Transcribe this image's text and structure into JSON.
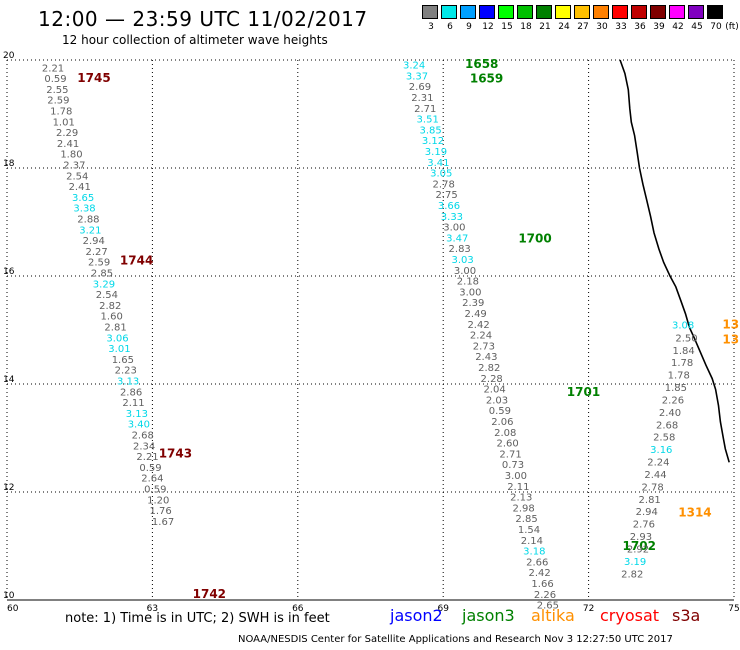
{
  "header": {
    "title": "12:00 — 23:59 UTC 11/02/2017",
    "subtitle": "12 hour collection of altimeter wave heights"
  },
  "legend": {
    "unit": "(ft)",
    "items": [
      {
        "label": "3",
        "color": "#808080"
      },
      {
        "label": "6",
        "color": "#00e8e8"
      },
      {
        "label": "9",
        "color": "#00a0ff"
      },
      {
        "label": "12",
        "color": "#0000ff"
      },
      {
        "label": "15",
        "color": "#00ff00"
      },
      {
        "label": "18",
        "color": "#00c000"
      },
      {
        "label": "21",
        "color": "#008000"
      },
      {
        "label": "24",
        "color": "#ffff00"
      },
      {
        "label": "27",
        "color": "#ffc000"
      },
      {
        "label": "30",
        "color": "#ff8000"
      },
      {
        "label": "33",
        "color": "#ff0000"
      },
      {
        "label": "36",
        "color": "#c00000"
      },
      {
        "label": "39",
        "color": "#800000"
      },
      {
        "label": "42",
        "color": "#ff00ff"
      },
      {
        "label": "45",
        "color": "#8000c0"
      },
      {
        "label": "70",
        "color": "#000000"
      }
    ]
  },
  "map": {
    "lon_range": [
      60,
      75
    ],
    "lat_range": [
      10,
      20
    ],
    "lon_ticks": [
      "60",
      "63",
      "66",
      "69",
      "72",
      "75"
    ],
    "lat_ticks": [
      "20",
      "18",
      "16",
      "14",
      "12",
      "10"
    ],
    "grid": true,
    "colors": {
      "gray": "#606060",
      "cyan": "#00d8e8",
      "maroon": "#800000",
      "green": "#008000",
      "orange": "#ff9000"
    }
  },
  "tracks": [
    {
      "color": "maroon",
      "times": [
        {
          "label": "1745",
          "lon": 61.45,
          "lat": 19.59
        },
        {
          "label": "1744",
          "lon": 62.33,
          "lat": 16.21
        },
        {
          "label": "1743",
          "lon": 63.13,
          "lat": 12.64
        },
        {
          "label": "1742",
          "lon": 63.83,
          "lat": 10.04
        }
      ],
      "points": [
        {
          "v": "2.21",
          "c": "gray",
          "lon": 60.95,
          "lat": 19.79
        },
        {
          "v": "0.59",
          "c": "gray",
          "lon": 61.0,
          "lat": 19.59
        },
        {
          "v": "2.55",
          "c": "gray",
          "lon": 61.04,
          "lat": 19.39
        },
        {
          "v": "2.59",
          "c": "gray",
          "lon": 61.06,
          "lat": 19.19
        },
        {
          "v": "1.78",
          "c": "gray",
          "lon": 61.12,
          "lat": 18.99
        },
        {
          "v": "1.01",
          "c": "gray",
          "lon": 61.17,
          "lat": 18.79
        },
        {
          "v": "2.29",
          "c": "gray",
          "lon": 61.24,
          "lat": 18.59
        },
        {
          "v": "2.41",
          "c": "gray",
          "lon": 61.26,
          "lat": 18.39
        },
        {
          "v": "1.80",
          "c": "gray",
          "lon": 61.33,
          "lat": 18.19
        },
        {
          "v": "2.37",
          "c": "gray",
          "lon": 61.39,
          "lat": 17.99
        },
        {
          "v": "2.54",
          "c": "gray",
          "lon": 61.45,
          "lat": 17.79
        },
        {
          "v": "2.41",
          "c": "gray",
          "lon": 61.5,
          "lat": 17.59
        },
        {
          "v": "3.65",
          "c": "cyan",
          "lon": 61.57,
          "lat": 17.39
        },
        {
          "v": "3.38",
          "c": "cyan",
          "lon": 61.6,
          "lat": 17.19
        },
        {
          "v": "2.88",
          "c": "gray",
          "lon": 61.68,
          "lat": 16.99
        },
        {
          "v": "3.21",
          "c": "cyan",
          "lon": 61.72,
          "lat": 16.79
        },
        {
          "v": "2.94",
          "c": "gray",
          "lon": 61.79,
          "lat": 16.59
        },
        {
          "v": "2.27",
          "c": "gray",
          "lon": 61.85,
          "lat": 16.39
        },
        {
          "v": "2.59",
          "c": "gray",
          "lon": 61.9,
          "lat": 16.19
        },
        {
          "v": "2.85",
          "c": "gray",
          "lon": 61.96,
          "lat": 15.99
        },
        {
          "v": "3.29",
          "c": "cyan",
          "lon": 62.0,
          "lat": 15.79
        },
        {
          "v": "2.54",
          "c": "gray",
          "lon": 62.06,
          "lat": 15.59
        },
        {
          "v": "2.82",
          "c": "gray",
          "lon": 62.13,
          "lat": 15.39
        },
        {
          "v": "1.60",
          "c": "gray",
          "lon": 62.16,
          "lat": 15.19
        },
        {
          "v": "2.81",
          "c": "gray",
          "lon": 62.24,
          "lat": 14.99
        },
        {
          "v": "3.06",
          "c": "cyan",
          "lon": 62.28,
          "lat": 14.79
        },
        {
          "v": "3.01",
          "c": "cyan",
          "lon": 62.32,
          "lat": 14.59
        },
        {
          "v": "1.65",
          "c": "gray",
          "lon": 62.39,
          "lat": 14.39
        },
        {
          "v": "2.23",
          "c": "gray",
          "lon": 62.45,
          "lat": 14.19
        },
        {
          "v": "3.13",
          "c": "cyan",
          "lon": 62.5,
          "lat": 13.99
        },
        {
          "v": "2.86",
          "c": "gray",
          "lon": 62.56,
          "lat": 13.79
        },
        {
          "v": "2.11",
          "c": "gray",
          "lon": 62.61,
          "lat": 13.59
        },
        {
          "v": "3.13",
          "c": "cyan",
          "lon": 62.68,
          "lat": 13.39
        },
        {
          "v": "3.40",
          "c": "cyan",
          "lon": 62.72,
          "lat": 13.19
        },
        {
          "v": "2.68",
          "c": "gray",
          "lon": 62.8,
          "lat": 12.99
        },
        {
          "v": "2.34",
          "c": "gray",
          "lon": 62.83,
          "lat": 12.79
        },
        {
          "v": "2.21",
          "c": "gray",
          "lon": 62.9,
          "lat": 12.59
        },
        {
          "v": "0.59",
          "c": "gray",
          "lon": 62.96,
          "lat": 12.39
        },
        {
          "v": "2.64",
          "c": "gray",
          "lon": 63.0,
          "lat": 12.19
        },
        {
          "v": "0.59",
          "c": "gray",
          "lon": 63.06,
          "lat": 11.99
        },
        {
          "v": "1.20",
          "c": "gray",
          "lon": 63.12,
          "lat": 11.79
        },
        {
          "v": "1.76",
          "c": "gray",
          "lon": 63.17,
          "lat": 11.59
        },
        {
          "v": "1.67",
          "c": "gray",
          "lon": 63.22,
          "lat": 11.39
        }
      ]
    },
    {
      "color": "green",
      "times": [
        {
          "label": "1658",
          "lon": 69.45,
          "lat": 19.85
        },
        {
          "label": "1659",
          "lon": 69.55,
          "lat": 19.58
        },
        {
          "label": "1700",
          "lon": 70.55,
          "lat": 16.62
        },
        {
          "label": "1701",
          "lon": 71.55,
          "lat": 13.78
        },
        {
          "label": "1702",
          "lon": 72.7,
          "lat": 10.93
        }
      ],
      "points": [
        {
          "v": "3.24",
          "c": "cyan",
          "lon": 68.4,
          "lat": 19.84
        },
        {
          "v": "3.37",
          "c": "cyan",
          "lon": 68.46,
          "lat": 19.64
        },
        {
          "v": "2.69",
          "c": "gray",
          "lon": 68.52,
          "lat": 19.44
        },
        {
          "v": "2.31",
          "c": "gray",
          "lon": 68.57,
          "lat": 19.24
        },
        {
          "v": "2.71",
          "c": "gray",
          "lon": 68.63,
          "lat": 19.04
        },
        {
          "v": "3.51",
          "c": "cyan",
          "lon": 68.68,
          "lat": 18.84
        },
        {
          "v": "3.85",
          "c": "cyan",
          "lon": 68.74,
          "lat": 18.64
        },
        {
          "v": "3.12",
          "c": "cyan",
          "lon": 68.79,
          "lat": 18.44
        },
        {
          "v": "3.19",
          "c": "cyan",
          "lon": 68.85,
          "lat": 18.24
        },
        {
          "v": "3.41",
          "c": "cyan",
          "lon": 68.9,
          "lat": 18.04
        },
        {
          "v": "3.05",
          "c": "cyan",
          "lon": 68.96,
          "lat": 17.84
        },
        {
          "v": "2.78",
          "c": "gray",
          "lon": 69.01,
          "lat": 17.64
        },
        {
          "v": "2.75",
          "c": "gray",
          "lon": 69.07,
          "lat": 17.44
        },
        {
          "v": "3.66",
          "c": "cyan",
          "lon": 69.12,
          "lat": 17.24
        },
        {
          "v": "3.33",
          "c": "cyan",
          "lon": 69.18,
          "lat": 17.04
        },
        {
          "v": "3.00",
          "c": "gray",
          "lon": 69.23,
          "lat": 16.84
        },
        {
          "v": "3.47",
          "c": "cyan",
          "lon": 69.29,
          "lat": 16.64
        },
        {
          "v": "2.83",
          "c": "gray",
          "lon": 69.34,
          "lat": 16.44
        },
        {
          "v": "3.03",
          "c": "cyan",
          "lon": 69.4,
          "lat": 16.24
        },
        {
          "v": "3.00",
          "c": "gray",
          "lon": 69.45,
          "lat": 16.04
        },
        {
          "v": "2.18",
          "c": "gray",
          "lon": 69.51,
          "lat": 15.84
        },
        {
          "v": "3.00",
          "c": "gray",
          "lon": 69.56,
          "lat": 15.64
        },
        {
          "v": "2.39",
          "c": "gray",
          "lon": 69.62,
          "lat": 15.44
        },
        {
          "v": "2.49",
          "c": "gray",
          "lon": 69.67,
          "lat": 15.24
        },
        {
          "v": "2.42",
          "c": "gray",
          "lon": 69.73,
          "lat": 15.04
        },
        {
          "v": "2.24",
          "c": "gray",
          "lon": 69.78,
          "lat": 14.84
        },
        {
          "v": "2.73",
          "c": "gray",
          "lon": 69.84,
          "lat": 14.64
        },
        {
          "v": "2.43",
          "c": "gray",
          "lon": 69.89,
          "lat": 14.44
        },
        {
          "v": "2.82",
          "c": "gray",
          "lon": 69.95,
          "lat": 14.24
        },
        {
          "v": "2.28",
          "c": "gray",
          "lon": 70.0,
          "lat": 14.04
        },
        {
          "v": "2.04",
          "c": "gray",
          "lon": 70.06,
          "lat": 13.84
        },
        {
          "v": "2.03",
          "c": "gray",
          "lon": 70.11,
          "lat": 13.64
        },
        {
          "v": "0.59",
          "c": "gray",
          "lon": 70.17,
          "lat": 13.44
        },
        {
          "v": "2.06",
          "c": "gray",
          "lon": 70.22,
          "lat": 13.24
        },
        {
          "v": "2.08",
          "c": "gray",
          "lon": 70.28,
          "lat": 13.04
        },
        {
          "v": "2.60",
          "c": "gray",
          "lon": 70.33,
          "lat": 12.84
        },
        {
          "v": "2.71",
          "c": "gray",
          "lon": 70.39,
          "lat": 12.64
        },
        {
          "v": "0.73",
          "c": "gray",
          "lon": 70.44,
          "lat": 12.44
        },
        {
          "v": "3.00",
          "c": "gray",
          "lon": 70.5,
          "lat": 12.24
        },
        {
          "v": "2.11",
          "c": "gray",
          "lon": 70.55,
          "lat": 12.04
        },
        {
          "v": "2.13",
          "c": "gray",
          "lon": 70.61,
          "lat": 11.84
        },
        {
          "v": "2.98",
          "c": "gray",
          "lon": 70.66,
          "lat": 11.64
        },
        {
          "v": "2.85",
          "c": "gray",
          "lon": 70.72,
          "lat": 11.44
        },
        {
          "v": "1.54",
          "c": "gray",
          "lon": 70.77,
          "lat": 11.24
        },
        {
          "v": "2.14",
          "c": "gray",
          "lon": 70.83,
          "lat": 11.04
        },
        {
          "v": "3.18",
          "c": "cyan",
          "lon": 70.88,
          "lat": 10.84
        },
        {
          "v": "2.66",
          "c": "gray",
          "lon": 70.94,
          "lat": 10.64
        },
        {
          "v": "2.42",
          "c": "gray",
          "lon": 70.99,
          "lat": 10.44
        },
        {
          "v": "1.66",
          "c": "gray",
          "lon": 71.05,
          "lat": 10.24
        },
        {
          "v": "2.26",
          "c": "gray",
          "lon": 71.1,
          "lat": 10.04
        },
        {
          "v": "2.65",
          "c": "gray",
          "lon": 71.16,
          "lat": 9.84
        }
      ]
    },
    {
      "color": "orange",
      "times": [
        {
          "label": "13",
          "lon": 74.76,
          "lat": 15.03
        },
        {
          "label": "13",
          "lon": 74.76,
          "lat": 14.75
        },
        {
          "label": "1314",
          "lon": 73.85,
          "lat": 11.55
        }
      ],
      "points": [
        {
          "v": "3.08",
          "c": "cyan",
          "lon": 73.95,
          "lat": 15.03
        },
        {
          "v": "2.50",
          "c": "gray",
          "lon": 74.02,
          "lat": 14.79
        },
        {
          "v": "1.84",
          "c": "gray",
          "lon": 73.96,
          "lat": 14.56
        },
        {
          "v": "1.78",
          "c": "gray",
          "lon": 73.93,
          "lat": 14.33
        },
        {
          "v": "1.78",
          "c": "gray",
          "lon": 73.86,
          "lat": 14.1
        },
        {
          "v": "1.85",
          "c": "gray",
          "lon": 73.8,
          "lat": 13.87
        },
        {
          "v": "2.26",
          "c": "gray",
          "lon": 73.74,
          "lat": 13.64
        },
        {
          "v": "2.40",
          "c": "gray",
          "lon": 73.68,
          "lat": 13.41
        },
        {
          "v": "2.68",
          "c": "gray",
          "lon": 73.62,
          "lat": 13.18
        },
        {
          "v": "2.58",
          "c": "gray",
          "lon": 73.56,
          "lat": 12.95
        },
        {
          "v": "3.16",
          "c": "cyan",
          "lon": 73.5,
          "lat": 12.72
        },
        {
          "v": "2.24",
          "c": "gray",
          "lon": 73.44,
          "lat": 12.49
        },
        {
          "v": "2.44",
          "c": "gray",
          "lon": 73.38,
          "lat": 12.26
        },
        {
          "v": "2.78",
          "c": "gray",
          "lon": 73.32,
          "lat": 12.03
        },
        {
          "v": "2.81",
          "c": "gray",
          "lon": 73.26,
          "lat": 11.8
        },
        {
          "v": "2.94",
          "c": "gray",
          "lon": 73.2,
          "lat": 11.57
        },
        {
          "v": "2.76",
          "c": "gray",
          "lon": 73.14,
          "lat": 11.34
        },
        {
          "v": "2.93",
          "c": "gray",
          "lon": 73.08,
          "lat": 11.11
        },
        {
          "v": "2.92",
          "c": "gray",
          "lon": 73.02,
          "lat": 10.88
        },
        {
          "v": "3.19",
          "c": "cyan",
          "lon": 72.96,
          "lat": 10.65
        },
        {
          "v": "2.82",
          "c": "gray",
          "lon": 72.9,
          "lat": 10.42
        }
      ]
    }
  ],
  "coast": [
    [
      72.65,
      20.0
    ],
    [
      72.75,
      19.75
    ],
    [
      72.82,
      19.45
    ],
    [
      72.85,
      19.1
    ],
    [
      72.88,
      18.85
    ],
    [
      72.95,
      18.6
    ],
    [
      73.0,
      18.3
    ],
    [
      73.05,
      18.0
    ],
    [
      73.12,
      17.7
    ],
    [
      73.2,
      17.4
    ],
    [
      73.28,
      17.1
    ],
    [
      73.35,
      16.8
    ],
    [
      73.45,
      16.5
    ],
    [
      73.55,
      16.25
    ],
    [
      73.68,
      16.0
    ],
    [
      73.8,
      15.8
    ],
    [
      73.9,
      15.55
    ],
    [
      74.0,
      15.3
    ],
    [
      74.08,
      15.05
    ],
    [
      74.18,
      14.85
    ],
    [
      74.3,
      14.6
    ],
    [
      74.42,
      14.35
    ],
    [
      74.55,
      14.1
    ],
    [
      74.62,
      13.9
    ],
    [
      74.68,
      13.6
    ],
    [
      74.72,
      13.3
    ],
    [
      74.78,
      13.0
    ],
    [
      74.82,
      12.8
    ],
    [
      74.9,
      12.55
    ]
  ],
  "notes": {
    "note": "note:  1) Time is in UTC;  2) SWH is in feet",
    "satellites": [
      {
        "name": "jason2",
        "color": "#0000ff"
      },
      {
        "name": "jason3",
        "color": "#008000"
      },
      {
        "name": "altika",
        "color": "#ff9000"
      },
      {
        "name": "cryosat",
        "color": "#ff0000"
      },
      {
        "name": "s3a",
        "color": "#800000"
      }
    ],
    "footer": "NOAA/NESDIS Center for Satellite Applications and Research    Nov  3 12:27:50 UTC 2017"
  }
}
